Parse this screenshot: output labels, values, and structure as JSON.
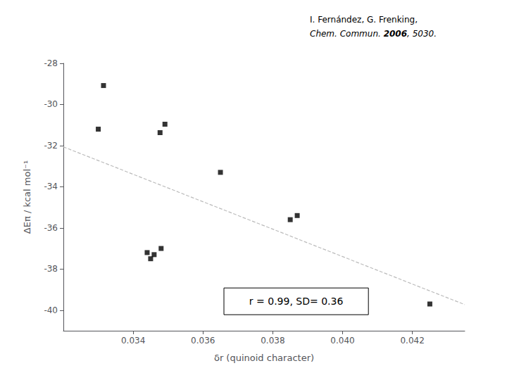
{
  "chart_data": {
    "type": "scatter",
    "xlabel": "δr (quinoid character)",
    "ylabel": "ΔEπ / kcal mol⁻¹",
    "series": [
      {
        "type": "line",
        "x": [
          0.032,
          0.0435
        ],
        "values": [
          -32.06,
          -39.73
        ],
        "color": "#bbbbbb",
        "line_style": "dashed"
      },
      {
        "type": "scatter",
        "x": [
          0.033,
          0.03477,
          0.03491,
          0.03315,
          0.0344,
          0.0345,
          0.0346,
          0.0348,
          0.0365,
          0.0385,
          0.0387,
          0.0425
        ],
        "values": [
          -31.2,
          -31.37,
          -30.96,
          -29.08,
          -37.2,
          -37.5,
          -37.3,
          -37.0,
          -33.3,
          -35.6,
          -35.4,
          -39.7
        ],
        "color": "#000000",
        "marker": "square"
      }
    ],
    "xlim": [
      0.032,
      0.0435
    ],
    "ylim": [
      -41,
      -28
    ],
    "xticks": [
      0.034,
      0.036,
      0.038,
      {
        "value": 0.04,
        "label": "0.040"
      },
      0.042
    ],
    "yticks": [
      -40,
      -38,
      -36,
      -34,
      -32,
      -30,
      -28
    ],
    "grid": false,
    "annotations": [
      "r = 0.99, SD= 0.36"
    ],
    "reference": [
      "I. Fernández, G. Frenking,",
      [
        "Chem. Commun. ",
        "2006",
        ", 5030."
      ]
    ]
  }
}
